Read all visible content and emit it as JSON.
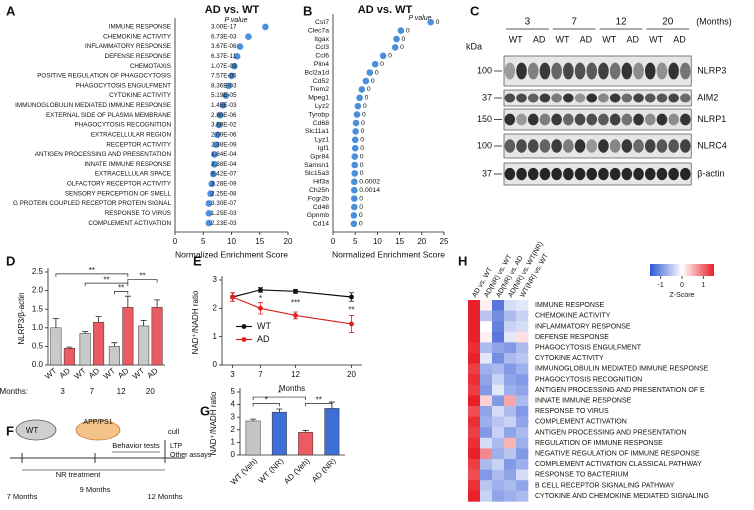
{
  "chart_data": [
    {
      "type": "dot",
      "label": "A",
      "title": "AD vs. WT",
      "p_value_title": "P value",
      "categories": [
        "IMMUNE RESPONSE",
        "CHEMOKINE ACTIVITY",
        "INFLAMMATORY RESPONSE",
        "DEFENSE RESPONSE",
        "CHEMOTAXIS",
        "POSITIVE REGULATION OF PHAGOCYTOSIS",
        "PHAGOCYTOSIS ENGULFMENT",
        "CYTOKINE ACTIVITY",
        "IMMUNOGLOBULIN MEDIATED IMMUNE RESPONSE",
        "EXTERNAL SIDE OF PLASMA MEMBRANE",
        "PHAGOCYTOSIS RECOGNITION",
        "EXTRACELLULAR REGION",
        "RECEPTOR ACTIVITY",
        "ANTIGEN PROCESSING AND PRESENTATION",
        "INNATE IMMUNE RESPONSE",
        "EXTRACELLULAR SPACE",
        "OLFACTORY RECEPTOR ACTIVITY",
        "SENSORY PERCEPTION OF SMELL",
        "G PROTEIN COUPLED RECEPTOR PROTEIN SIGNAL",
        "RESPONSE TO VIRUS",
        "COMPLEMENT ACTIVATION"
      ],
      "values": [
        16,
        13,
        11.5,
        11,
        10.5,
        10,
        9.5,
        9,
        8.5,
        8,
        7.8,
        7.5,
        7.3,
        7,
        7,
        6.8,
        6.5,
        6.3,
        6,
        6,
        6
      ],
      "p_values": [
        "3.00E-17",
        "6.73E-03",
        "3.67E-06",
        "6.37E-11",
        "1.07E-03",
        "7.57E-05",
        "8.36E-03",
        "5.19E-05",
        "1.45E-03",
        "2.80E-06",
        "3.60E-02",
        "2.09E-06",
        "2.38E-09",
        "1.84E-04",
        "2.38E-04",
        "9.42E-07",
        "3.28E-09",
        "2.25E-08",
        "3.30E-07",
        "1.25E-03",
        "2.23E-03"
      ],
      "xlabel": "Normalized Enrichment Score",
      "xlim": [
        0,
        20
      ],
      "xticks": [
        0,
        5,
        10,
        15,
        20
      ],
      "color": "#4a8fd8"
    },
    {
      "type": "dot",
      "label": "B",
      "title": "AD vs. WT",
      "p_value_title": "P value",
      "categories": [
        "Cst7",
        "Clec7a",
        "Itgax",
        "Ccl3",
        "Ccl6",
        "Plin4",
        "Bcl2a1d",
        "Cd52",
        "Trem2",
        "Mpeg1",
        "Lyz2",
        "Tyrobp",
        "Cd68",
        "Slc11a1",
        "Lyz1",
        "Igf1",
        "Gpr84",
        "Samsn1",
        "Slc15a3",
        "Hif3a",
        "Ch25h",
        "Fcgr2b",
        "Cd48",
        "Gpnmb",
        "Cd14"
      ],
      "values": [
        22,
        15.3,
        14.3,
        14,
        11.3,
        9.5,
        8.3,
        7.4,
        6.5,
        6,
        5.6,
        5.4,
        5.2,
        5.1,
        5,
        5,
        4.9,
        4.9,
        4.9,
        4.8,
        4.8,
        4.8,
        4.8,
        4.7,
        4.7
      ],
      "p_values": [
        "0",
        "0",
        "0",
        "0",
        "0",
        "0",
        "0",
        "0",
        "0",
        "0",
        "0",
        "0",
        "0",
        "0",
        "0",
        "0",
        "0",
        "0",
        "0",
        "0.0002",
        "0.0014",
        "0",
        "0",
        "0",
        "0"
      ],
      "xlabel": "Normalized Enrichment Score",
      "xlim": [
        0,
        25
      ],
      "xticks": [
        0,
        5,
        10,
        15,
        20,
        25
      ],
      "color": "#4a8fd8"
    },
    {
      "type": "bar",
      "label": "D",
      "ylabel": "NLRP3/β-actin",
      "group_title": "Months:",
      "categories": [
        "3",
        "7",
        "12",
        "20"
      ],
      "series": [
        {
          "name": "WT",
          "color": "#c9c9c9",
          "values": [
            1.0,
            0.85,
            0.5,
            1.05
          ],
          "errors": [
            0.25,
            0.05,
            0.1,
            0.15
          ]
        },
        {
          "name": "AD",
          "color": "#ec5a62",
          "values": [
            0.45,
            1.15,
            1.55,
            1.55
          ],
          "errors": [
            0.03,
            0.15,
            0.3,
            0.2
          ]
        }
      ],
      "ylim": [
        0,
        2.5
      ],
      "yticks": [
        {
          "value": 0,
          "label": "0.0"
        },
        0.5,
        {
          "value": 1,
          "label": "1.0"
        },
        1.5,
        {
          "value": 2,
          "label": "2.0"
        },
        2.5
      ],
      "significance": [
        "**",
        "**",
        "**",
        "**"
      ]
    },
    {
      "type": "line",
      "label": "E",
      "ylabel": "NAD⁺/NADH ratio",
      "xlabel": "Months",
      "x": [
        3,
        7,
        12,
        20
      ],
      "xlim": [
        1.5,
        21.5
      ],
      "xticks": [
        3,
        7,
        12,
        20
      ],
      "ylim": [
        0,
        3
      ],
      "yticks": [
        0,
        1,
        2,
        3
      ],
      "series": [
        {
          "name": "WT",
          "color": "#111111",
          "values": [
            2.4,
            2.65,
            2.6,
            2.4
          ],
          "errors": [
            0.15,
            0.08,
            0.07,
            0.15
          ]
        },
        {
          "name": "AD",
          "color": "#e02020",
          "values": [
            2.4,
            2.0,
            1.75,
            1.45
          ],
          "errors": [
            0.15,
            0.2,
            0.12,
            0.3
          ]
        }
      ],
      "legend": "center-left",
      "significance": [
        {
          "x": 7,
          "text": "*"
        },
        {
          "x": 12,
          "text": "***"
        },
        {
          "x": 20,
          "text": "**"
        }
      ]
    },
    {
      "type": "bar",
      "label": "G",
      "ylabel": "NAD⁺/NADH ratio",
      "categories": [
        "WT (Veh)",
        "WT (NR)",
        "AD (Veh)",
        "AD (NR)"
      ],
      "values": [
        2.7,
        3.4,
        1.8,
        3.7
      ],
      "errors": [
        0.15,
        0.25,
        0.15,
        0.5
      ],
      "colors": [
        "#c4c4c4",
        "#3d6fd6",
        "#ec5a62",
        "#3d6fd6"
      ],
      "ylim": [
        0,
        5
      ],
      "yticks": [
        0,
        1,
        2,
        3,
        4,
        5
      ],
      "significance": [
        "*",
        "*",
        "**"
      ]
    },
    {
      "type": "heatmap",
      "label": "H",
      "columns": [
        "AD vs. WT",
        "AD(NR) vs. WT",
        "AD(NR) vs. AD",
        "AD(NR) vs. WT(NR)",
        "WT(NR) vs. WT"
      ],
      "rows": [
        "IMMUNE RESPONSE",
        "CHEMOKINE ACTIVITY",
        "INFLAMMATORY RESPONSE",
        "DEFENSE RESPONSE",
        "PHAGOCYTOSIS ENGULFMENT",
        "CYTOKINE ACTIVITY",
        "IMMUNOGLOBULIN MEDIATED IMMUNE RESPONSE",
        "PHAGOCYTOSIS RECOGNITION",
        "ANTIGEN PROCESSING AND PRESENTATION OF E",
        "INNATE IMMUNE RESPONSE",
        "RESPONSE TO VIRUS",
        "COMPLEMENT ACTIVATION",
        "ANTIGEN PROCESSING AND PRESENTATION",
        "REGULATION OF IMMUNE RESPONSE",
        "NEGATIVE REGULATION OF IMMUNE RESPONSE",
        "COMPLEMENT ACTIVATION  CLASSICAL PATHWAY",
        "RESPONSE TO BACTERIUM",
        "B CELL RECEPTOR SIGNALING PATHWAY",
        "CYTOKINE AND CHEMOKINE MEDIATED SIGNALING"
      ],
      "values": [
        [
          1.5,
          0.1,
          -1.2,
          -0.3,
          -0.2
        ],
        [
          1.5,
          -0.5,
          -1.0,
          -0.6,
          -0.4
        ],
        [
          1.5,
          0.0,
          -1.1,
          -0.4,
          -0.3
        ],
        [
          1.5,
          0.1,
          -1.2,
          -0.2,
          0.2
        ],
        [
          1.4,
          -0.6,
          -0.8,
          -0.9,
          -0.6
        ],
        [
          1.5,
          -0.2,
          -1.0,
          -0.6,
          -0.5
        ],
        [
          1.3,
          -0.7,
          -0.6,
          -0.9,
          -0.7
        ],
        [
          1.4,
          -0.8,
          -0.4,
          -0.8,
          -0.9
        ],
        [
          1.3,
          -0.9,
          -0.2,
          -0.7,
          -0.8
        ],
        [
          1.5,
          0.3,
          -0.9,
          0.6,
          -0.6
        ],
        [
          1.2,
          -0.8,
          -0.3,
          -0.6,
          -0.9
        ],
        [
          1.4,
          -0.7,
          -0.5,
          -0.4,
          -0.8
        ],
        [
          1.3,
          -0.9,
          -0.4,
          -0.8,
          -0.6
        ],
        [
          1.4,
          -0.3,
          -0.6,
          0.5,
          -0.7
        ],
        [
          1.5,
          0.8,
          -0.7,
          -0.5,
          -0.9
        ],
        [
          1.3,
          -0.6,
          -0.4,
          -0.9,
          -0.7
        ],
        [
          1.2,
          -0.9,
          -0.6,
          -0.8,
          -0.3
        ],
        [
          1.4,
          -0.5,
          -0.7,
          -0.6,
          -0.8
        ],
        [
          1.5,
          -0.4,
          -0.8,
          -0.7,
          -0.6
        ]
      ],
      "zlim": [
        -1.5,
        1.5
      ],
      "colorbar_ticks": [
        -1,
        0,
        1
      ],
      "colorbar_label": "Z-Score",
      "colors": [
        "#2f55d4",
        "#ffffff",
        "#e8202a"
      ]
    }
  ],
  "blot": {
    "label": "C",
    "months": [
      "3",
      "7",
      "12",
      "20"
    ],
    "months_unit": "(Months)",
    "genotypes": [
      "WT",
      "AD"
    ],
    "kda_title": "kDa",
    "rows": [
      {
        "kda": "100",
        "name": "NLRP3"
      },
      {
        "kda": "37",
        "name": "AIM2"
      },
      {
        "kda": "150",
        "name": "NLRP1"
      },
      {
        "kda": "100",
        "name": "NLRC4"
      },
      {
        "kda": "37",
        "name": "β-actin"
      }
    ]
  },
  "timeline": {
    "label": "F",
    "mice": [
      "WT",
      "APP/PS1"
    ],
    "treatment": "NR treatment",
    "behavior": "Behavior tests",
    "cull": "cull",
    "assays": [
      "LTP",
      "Other assays"
    ],
    "timepoints": [
      "7 Months",
      "9 Months",
      "12 Months"
    ]
  }
}
